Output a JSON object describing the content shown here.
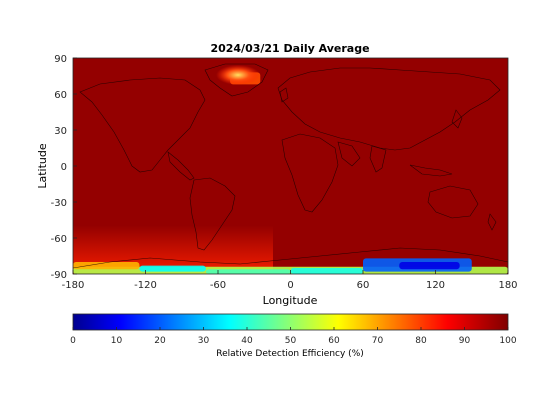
{
  "chart_data": {
    "type": "heatmap",
    "title": "2024/03/21 Daily Average",
    "xlabel": "Longitude",
    "ylabel": "Latitude",
    "xlim": [
      -180,
      180
    ],
    "ylim": [
      -90,
      90
    ],
    "x_ticks": [
      -180,
      -120,
      -60,
      0,
      60,
      120,
      180
    ],
    "y_ticks": [
      -90,
      -60,
      -30,
      0,
      30,
      60,
      90
    ],
    "background_value": 98,
    "colormap": "jet",
    "colorbar": {
      "label": "Relative Detection Efficiency (%)",
      "range": [
        0,
        100
      ],
      "ticks": [
        0,
        10,
        20,
        30,
        40,
        50,
        60,
        70,
        80,
        90,
        100
      ],
      "placement": "bottom"
    },
    "regions": [
      {
        "lon": [
          -180,
          180
        ],
        "lat": [
          -90,
          -84
        ],
        "value": 55
      },
      {
        "lon": [
          -180,
          -125
        ],
        "lat": [
          -86,
          -80
        ],
        "value": 70
      },
      {
        "lon": [
          -125,
          -70
        ],
        "lat": [
          -88,
          -83
        ],
        "value": 38
      },
      {
        "lon": [
          -70,
          0
        ],
        "lat": [
          -90,
          -86
        ],
        "value": 45
      },
      {
        "lon": [
          0,
          60
        ],
        "lat": [
          -90,
          -85
        ],
        "value": 40
      },
      {
        "lon": [
          60,
          150
        ],
        "lat": [
          -88,
          -77
        ],
        "value": 22
      },
      {
        "lon": [
          90,
          140
        ],
        "lat": [
          -86,
          -80
        ],
        "value": 10
      },
      {
        "lon": [
          -50,
          -25
        ],
        "lat": [
          68,
          78
        ],
        "value": 80
      }
    ],
    "grid": false,
    "coastlines": true
  }
}
